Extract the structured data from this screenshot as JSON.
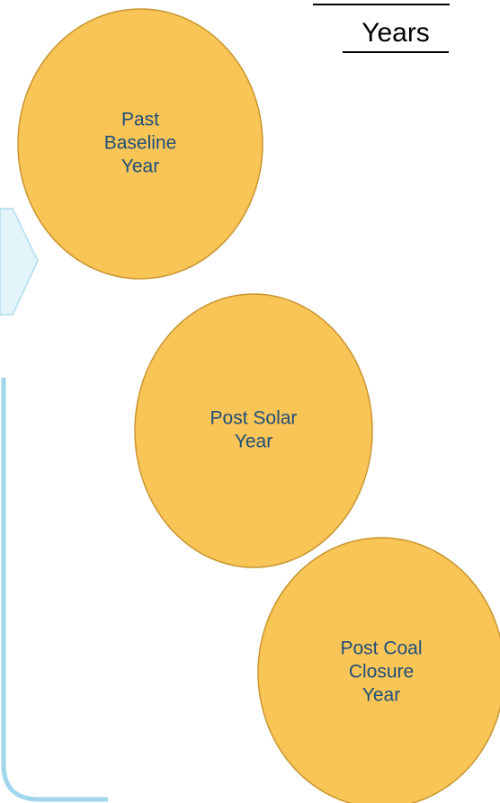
{
  "heading": "Years",
  "nodes": [
    {
      "lines": [
        "Past",
        "Baseline",
        "Year"
      ]
    },
    {
      "lines": [
        "Post Solar",
        "Year"
      ]
    },
    {
      "lines": [
        "Post Coal",
        "Closure",
        "Year"
      ]
    }
  ]
}
